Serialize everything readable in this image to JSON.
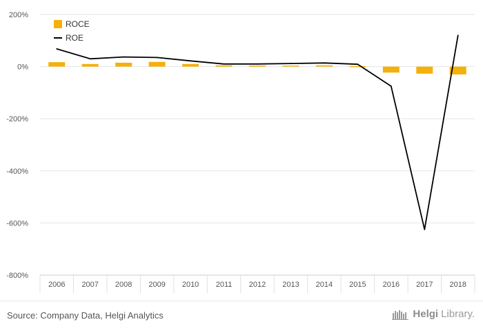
{
  "chart_data": {
    "type": "bar",
    "categories": [
      "2006",
      "2007",
      "2008",
      "2009",
      "2010",
      "2011",
      "2012",
      "2013",
      "2014",
      "2015",
      "2016",
      "2017",
      "2018"
    ],
    "series": [
      {
        "name": "ROCE",
        "type": "bar",
        "color": "#f5b00a",
        "values": [
          17,
          10,
          15,
          18,
          10,
          5,
          4,
          4,
          5,
          2,
          -23,
          -27,
          -30
        ]
      },
      {
        "name": "ROE",
        "type": "line",
        "color": "#000000",
        "values": [
          68,
          30,
          37,
          35,
          22,
          10,
          10,
          12,
          14,
          9,
          -75,
          -625,
          120
        ]
      }
    ],
    "yaxis": {
      "min": -800,
      "max": 200,
      "ticks": [
        200,
        0,
        -200,
        -400,
        -600,
        -800
      ],
      "tick_labels": [
        "200%",
        "0%",
        "-200%",
        "-400%",
        "-600%",
        "-800%"
      ]
    },
    "legend": {
      "position": "top-left"
    },
    "grid": true
  },
  "footer": {
    "source": "Source: Company Data, Helgi Analytics",
    "brand_prefix": "Helgi",
    "brand_suffix": "Library."
  }
}
